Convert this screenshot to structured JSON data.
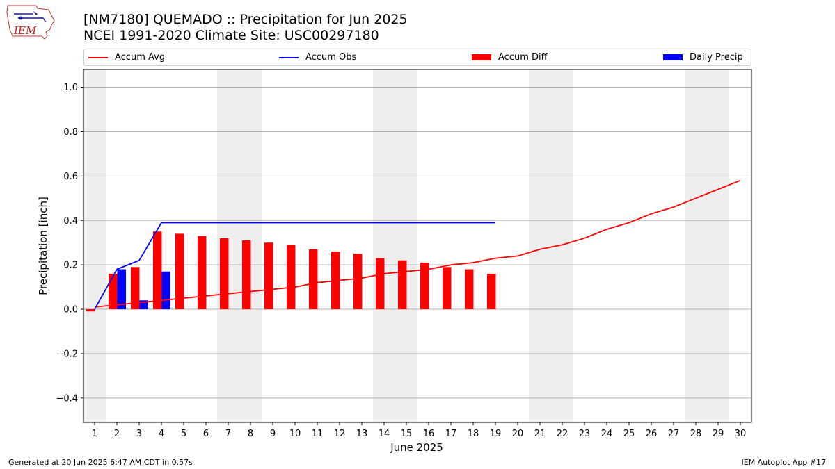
{
  "header": {
    "logo_text": "IEM",
    "title_line1": "[NM7180] QUEMADO :: Precipitation for Jun 2025",
    "title_line2": "NCEI 1991-2020 Climate Site: USC00297180"
  },
  "footer": {
    "generated": "Generated at 20 Jun 2025 6:47 AM CDT in 0.57s",
    "app": "IEM Autoplot App #17"
  },
  "colors": {
    "accum_avg": "#ff0000",
    "accum_obs": "#0000ff",
    "accum_diff": "#ff0000",
    "daily_precip": "#0000ff",
    "weekend_shade": "#eeeeee",
    "grid": "#b0b0b0"
  },
  "chart_data": {
    "type": "bar",
    "xlabel": "June 2025",
    "ylabel": "Precipitation [inch]",
    "ylim": [
      -0.51,
      1.08
    ],
    "yticks": [
      -0.4,
      -0.2,
      0.0,
      0.2,
      0.4,
      0.6,
      0.8,
      1.0
    ],
    "ytick_labels": [
      "−0.4",
      "−0.2",
      "0.0",
      "0.2",
      "0.4",
      "0.6",
      "0.8",
      "1.0"
    ],
    "grid": "horizontal",
    "legend_position": "top",
    "days": [
      1,
      2,
      3,
      4,
      5,
      6,
      7,
      8,
      9,
      10,
      11,
      12,
      13,
      14,
      15,
      16,
      17,
      18,
      19,
      20,
      21,
      22,
      23,
      24,
      25,
      26,
      27,
      28,
      29,
      30
    ],
    "weekend_days": [
      1,
      7,
      8,
      14,
      15,
      21,
      22,
      28,
      29
    ],
    "series": [
      {
        "name": "Accum Avg",
        "kind": "line",
        "values": [
          0.01,
          0.02,
          0.03,
          0.04,
          0.05,
          0.06,
          0.07,
          0.08,
          0.09,
          0.1,
          0.12,
          0.13,
          0.14,
          0.16,
          0.17,
          0.18,
          0.2,
          0.21,
          0.23,
          0.24,
          0.27,
          0.29,
          0.32,
          0.36,
          0.39,
          0.43,
          0.46,
          0.5,
          0.54,
          0.58
        ]
      },
      {
        "name": "Accum Obs",
        "kind": "line",
        "values": [
          0.0,
          0.18,
          0.22,
          0.39,
          0.39,
          0.39,
          0.39,
          0.39,
          0.39,
          0.39,
          0.39,
          0.39,
          0.39,
          0.39,
          0.39,
          0.39,
          0.39,
          0.39,
          0.39
        ]
      },
      {
        "name": "Accum Diff",
        "kind": "bar",
        "values": [
          -0.01,
          0.16,
          0.19,
          0.35,
          0.34,
          0.33,
          0.32,
          0.31,
          0.3,
          0.29,
          0.27,
          0.26,
          0.25,
          0.23,
          0.22,
          0.21,
          0.19,
          0.18,
          0.16
        ]
      },
      {
        "name": "Daily Precip",
        "kind": "bar",
        "values": [
          0.0,
          0.18,
          0.04,
          0.17,
          0,
          0,
          0,
          0,
          0,
          0,
          0,
          0,
          0,
          0,
          0,
          0,
          0,
          0,
          0
        ]
      }
    ]
  }
}
